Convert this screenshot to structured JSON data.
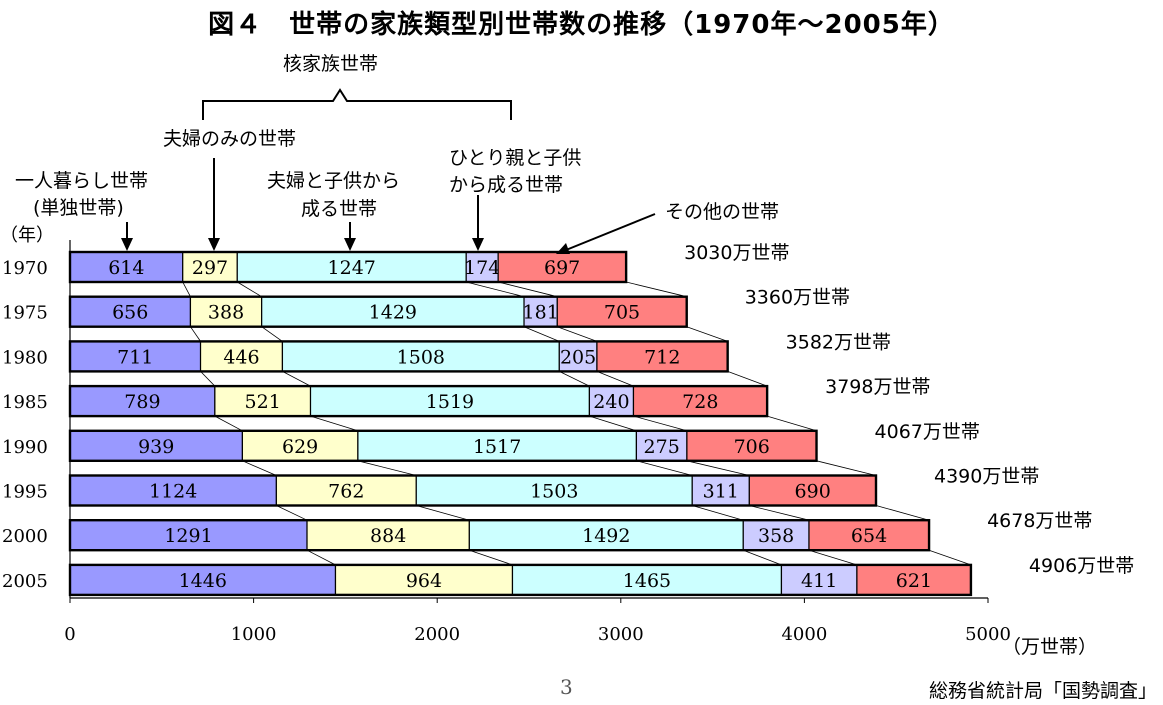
{
  "title": "図４　世帯の家族類型別世帯数の推移（1970年～2005年）",
  "annotations": {
    "nuclear": "核家族世帯",
    "couple_only": "夫婦のみの世帯",
    "couple_children_l1": "夫婦と子供から",
    "couple_children_l2": "成る世帯",
    "single_parent_l1": "ひとり親と子供",
    "single_parent_l2": "から成る世帯",
    "one_person_l1": "一人暮らし世帯",
    "one_person_l2": "(単独世帯)",
    "other": "その他の世帯",
    "year_unit": "（年）"
  },
  "page_number": "3",
  "source": "総務省統計局「国勢調査」",
  "colors": {
    "one_person": "#9999ff",
    "couple_only": "#ffffcc",
    "couple_children": "#ccffff",
    "single_parent": "#ccccff",
    "other": "#ff8080"
  },
  "chart_data": {
    "type": "bar",
    "orientation": "horizontal",
    "stacked": true,
    "categories": [
      "1970",
      "1975",
      "1980",
      "1985",
      "1990",
      "1995",
      "2000",
      "2005"
    ],
    "series": [
      {
        "name": "一人暮らし世帯(単独世帯)",
        "color_key": "one_person",
        "values": [
          614,
          656,
          711,
          789,
          939,
          1124,
          1291,
          1446
        ]
      },
      {
        "name": "夫婦のみの世帯",
        "color_key": "couple_only",
        "values": [
          297,
          388,
          446,
          521,
          629,
          762,
          884,
          964
        ]
      },
      {
        "name": "夫婦と子供から成る世帯",
        "color_key": "couple_children",
        "values": [
          1247,
          1429,
          1508,
          1519,
          1517,
          1503,
          1492,
          1465
        ]
      },
      {
        "name": "ひとり親と子供から成る世帯",
        "color_key": "single_parent",
        "values": [
          174,
          181,
          205,
          240,
          275,
          311,
          358,
          411
        ]
      },
      {
        "name": "その他の世帯",
        "color_key": "other",
        "values": [
          697,
          705,
          712,
          728,
          706,
          690,
          654,
          621
        ]
      }
    ],
    "totals": [
      "3030万世帯",
      "3360万世帯",
      "3582万世帯",
      "3798万世帯",
      "4067万世帯",
      "4390万世帯",
      "4678万世帯",
      "4906万世帯"
    ],
    "xlim": [
      0,
      5000
    ],
    "xticks": [
      "0",
      "1000",
      "2000",
      "3000",
      "4000",
      "5000"
    ],
    "xlabel": "（万世帯）",
    "ylabel": "（年）"
  }
}
